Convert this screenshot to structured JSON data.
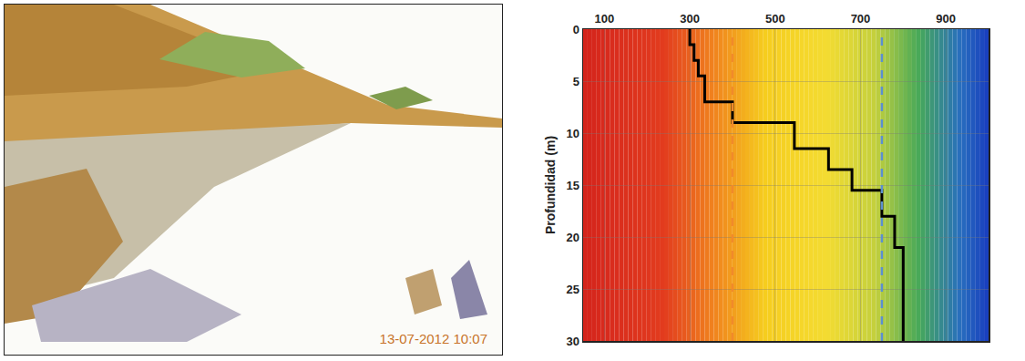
{
  "photo": {
    "timestamp": "13-07-2012 10:07"
  },
  "chart_data": {
    "type": "line",
    "x": [
      300,
      300,
      310,
      310,
      320,
      320,
      335,
      335,
      400,
      400,
      545,
      545,
      625,
      625,
      680,
      680,
      750,
      750,
      780,
      780,
      800,
      800
    ],
    "values": [
      0,
      1.5,
      1.5,
      3,
      3,
      4.5,
      4.5,
      7,
      7,
      9,
      9,
      11.5,
      11.5,
      13.5,
      13.5,
      15.5,
      15.5,
      18,
      18,
      21,
      21,
      30
    ],
    "color": "#000000",
    "y_label": "Profundidad (m)",
    "xlim": [
      50,
      1000
    ],
    "xticks": [
      100,
      300,
      500,
      700,
      900
    ],
    "ylim": [
      30,
      0
    ],
    "yticks": [
      0,
      5,
      10,
      15,
      20,
      25,
      30
    ],
    "grid": true,
    "vlines": {
      "values": [
        400,
        750
      ],
      "colors": [
        "#f08a2c",
        "#5b8fd0"
      ],
      "line_style": "dash"
    }
  }
}
